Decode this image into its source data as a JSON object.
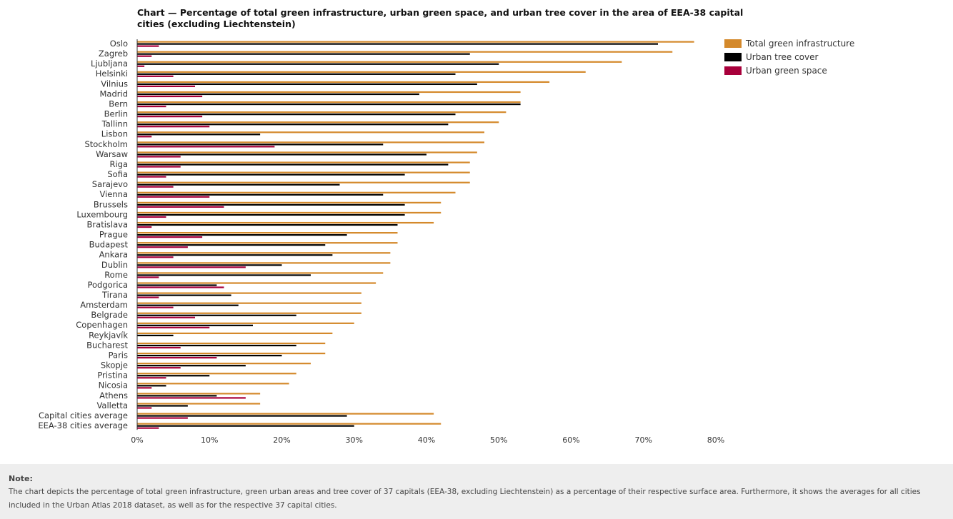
{
  "chart_data": {
    "type": "bar",
    "orientation": "horizontal",
    "title": "Chart — Percentage of total green infrastructure, urban green space, and urban tree cover in the area of EEA-38 capital cities (excluding Liechtenstein)",
    "xlabel": "",
    "ylabel": "",
    "xlim": [
      0,
      80
    ],
    "x_ticks": [
      "0%",
      "10%",
      "20%",
      "30%",
      "40%",
      "50%",
      "60%",
      "70%",
      "80%"
    ],
    "x_tick_values": [
      0,
      10,
      20,
      30,
      40,
      50,
      60,
      70,
      80
    ],
    "grid": false,
    "legend_position": "top-right",
    "categories": [
      "Oslo",
      "Zagreb",
      "Ljubljana",
      "Helsinki",
      "Vilnius",
      "Madrid",
      "Bern",
      "Berlin",
      "Tallinn",
      "Lisbon",
      "Stockholm",
      "Warsaw",
      "Riga",
      "Sofia",
      "Sarajevo",
      "Vienna",
      "Brussels",
      "Luxembourg",
      "Bratislava",
      "Prague",
      "Budapest",
      "Ankara",
      "Dublin",
      "Rome",
      "Podgorica",
      "Tirana",
      "Amsterdam",
      "Belgrade",
      "Copenhagen",
      "Reykjavík",
      "Bucharest",
      "Paris",
      "Skopje",
      "Pristina",
      "Nicosia",
      "Athens",
      "Valletta",
      "Capital cities average",
      "EEA-38 cities average"
    ],
    "series": [
      {
        "name": "Total green infrastructure",
        "color": "#d4892b",
        "values": [
          77,
          74,
          67,
          62,
          57,
          53,
          53,
          51,
          50,
          48,
          48,
          47,
          46,
          46,
          46,
          44,
          42,
          42,
          41,
          36,
          36,
          35,
          35,
          34,
          33,
          31,
          31,
          31,
          30,
          27,
          26,
          26,
          24,
          22,
          21,
          17,
          17,
          41,
          42
        ]
      },
      {
        "name": "Urban tree cover",
        "color": "#000000",
        "values": [
          72,
          46,
          50,
          44,
          47,
          39,
          53,
          44,
          43,
          17,
          34,
          40,
          43,
          37,
          28,
          34,
          37,
          37,
          36,
          29,
          26,
          27,
          20,
          24,
          11,
          13,
          14,
          22,
          16,
          5,
          22,
          20,
          15,
          10,
          4,
          11,
          7,
          29,
          30
        ]
      },
      {
        "name": "Urban green space",
        "color": "#a8003b",
        "values": [
          3,
          2,
          1,
          5,
          8,
          9,
          4,
          9,
          10,
          2,
          19,
          6,
          6,
          4,
          5,
          10,
          12,
          4,
          2,
          9,
          7,
          5,
          15,
          3,
          12,
          3,
          5,
          8,
          10,
          0,
          6,
          11,
          6,
          4,
          2,
          15,
          2,
          7,
          3
        ]
      }
    ]
  },
  "note": {
    "title": "Note:",
    "text": "The chart depicts the percentage of total green infrastructure, green urban areas and tree cover of 37 capitals (EEA-38, excluding Liechtenstein) as a percentage of their respective surface area. Furthermore, it shows the averages for all cities included in the Urban Atlas 2018 dataset, as well as for the respective 37 capital cities."
  }
}
